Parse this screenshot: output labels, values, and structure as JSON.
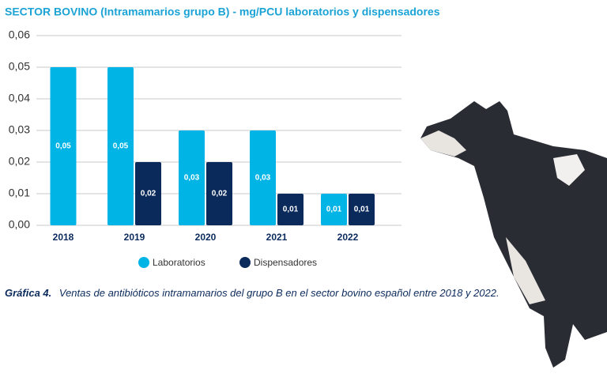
{
  "chart_data": {
    "type": "bar",
    "title": "SECTOR BOVINO (Intramamarios grupo B) - mg/PCU laboratorios y dispensadores",
    "categories": [
      "2018",
      "2019",
      "2020",
      "2021",
      "2022"
    ],
    "series": [
      {
        "name": "Laboratorios",
        "color": "#00b4e6",
        "values": [
          0.05,
          0.05,
          0.03,
          0.03,
          0.01
        ],
        "value_labels": [
          "0,05",
          "0,05",
          "0,03",
          "0,03",
          "0,01"
        ]
      },
      {
        "name": "Dispensadores",
        "color": "#0b2a5c",
        "values": [
          null,
          0.02,
          0.02,
          0.01,
          0.01
        ],
        "value_labels": [
          null,
          "0,02",
          "0,02",
          "0,01",
          "0,01"
        ]
      }
    ],
    "ylim": [
      0,
      0.06
    ],
    "yticks": [
      {
        "value": 0,
        "label": "0,00"
      },
      {
        "value": 0.01,
        "label": "0,01"
      },
      {
        "value": 0.02,
        "label": "0,02"
      },
      {
        "value": 0.03,
        "label": "0,03"
      },
      {
        "value": 0.04,
        "label": "0,04"
      },
      {
        "value": 0.05,
        "label": "0,05"
      },
      {
        "value": 0.06,
        "label": "0,06"
      }
    ],
    "grid": true,
    "caption_label": "Gráfica 4.",
    "caption": "Ventas de antibióticos intramamarios del grupo B en el sector bovino español entre 2018 y 2022."
  }
}
